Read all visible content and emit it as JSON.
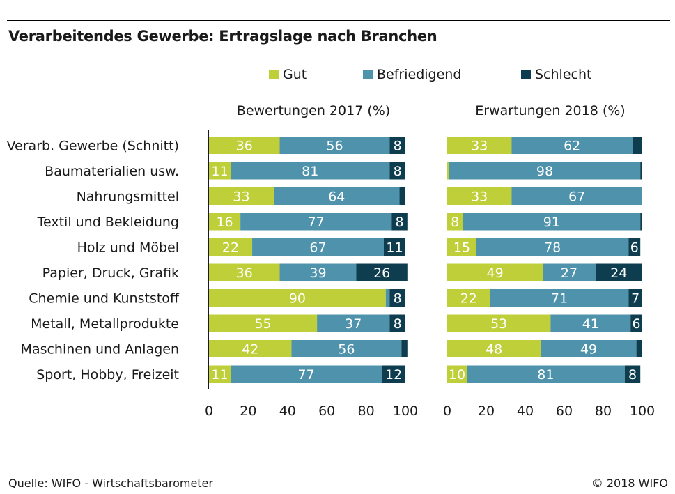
{
  "title": "Verarbeitendes Gewerbe: Ertragslage nach Branchen",
  "source": "Quelle: WIFO - Wirtschaftsbarometer",
  "copyright": "© 2018 WIFO",
  "colors": {
    "Gut": "#bfcf3a",
    "Befriedigend": "#4e93ab",
    "Schlecht": "#0d3d4e"
  },
  "legend": [
    "Gut",
    "Befriedigend",
    "Schlecht"
  ],
  "chart_data": [
    {
      "type": "bar",
      "orientation": "horizontal",
      "stacked": true,
      "title": "Bewertungen 2017 (%)",
      "categories": [
        "Verarb. Gewerbe (Schnitt)",
        "Baumaterialien usw.",
        "Nahrungsmittel",
        "Textil und Bekleidung",
        "Holz und Möbel",
        "Papier, Druck, Grafik",
        "Chemie und Kunststoff",
        "Metall, Metallprodukte",
        "Maschinen und Anlagen",
        "Sport, Hobby, Freizeit"
      ],
      "series": [
        {
          "name": "Gut",
          "values": [
            36,
            11,
            33,
            16,
            22,
            36,
            90,
            55,
            42,
            11
          ]
        },
        {
          "name": "Befriedigend",
          "values": [
            56,
            81,
            64,
            77,
            67,
            39,
            2,
            37,
            56,
            77
          ]
        },
        {
          "name": "Schlecht",
          "values": [
            8,
            8,
            3,
            8,
            11,
            26,
            8,
            8,
            3,
            12
          ]
        }
      ],
      "labels": [
        [
          "36",
          "56",
          "8"
        ],
        [
          "11",
          "81",
          "8"
        ],
        [
          "33",
          "64",
          ""
        ],
        [
          "16",
          "77",
          "8"
        ],
        [
          "22",
          "67",
          "11"
        ],
        [
          "36",
          "39",
          "26"
        ],
        [
          "90",
          "",
          "8"
        ],
        [
          "55",
          "37",
          "8"
        ],
        [
          "42",
          "56",
          ""
        ],
        [
          "11",
          "77",
          "12"
        ]
      ],
      "xlim": [
        0,
        100
      ],
      "xticks": [
        "0",
        "20",
        "40",
        "60",
        "80",
        "100"
      ],
      "grid": false
    },
    {
      "type": "bar",
      "orientation": "horizontal",
      "stacked": true,
      "title": "Erwartungen 2018 (%)",
      "categories": [
        "Verarb. Gewerbe (Schnitt)",
        "Baumaterialien usw.",
        "Nahrungsmittel",
        "Textil und Bekleidung",
        "Holz und Möbel",
        "Papier, Druck, Grafik",
        "Chemie und Kunststoff",
        "Metall, Metallprodukte",
        "Maschinen und Anlagen",
        "Sport, Hobby, Freizeit"
      ],
      "series": [
        {
          "name": "Gut",
          "values": [
            33,
            1,
            33,
            8,
            15,
            49,
            22,
            53,
            48,
            10
          ]
        },
        {
          "name": "Befriedigend",
          "values": [
            62,
            98,
            67,
            91,
            78,
            27,
            71,
            41,
            49,
            81
          ]
        },
        {
          "name": "Schlecht",
          "values": [
            5,
            1,
            0,
            1,
            6,
            24,
            7,
            6,
            3,
            8
          ]
        }
      ],
      "labels": [
        [
          "33",
          "62",
          ""
        ],
        [
          "",
          "98",
          ""
        ],
        [
          "33",
          "67",
          ""
        ],
        [
          "8",
          "91",
          ""
        ],
        [
          "15",
          "78",
          "6"
        ],
        [
          "49",
          "27",
          "24"
        ],
        [
          "22",
          "71",
          "7"
        ],
        [
          "53",
          "41",
          "6"
        ],
        [
          "48",
          "49",
          ""
        ],
        [
          "10",
          "81",
          "8"
        ]
      ],
      "xlim": [
        0,
        100
      ],
      "xticks": [
        "0",
        "20",
        "40",
        "60",
        "80",
        "100"
      ],
      "grid": false
    }
  ]
}
